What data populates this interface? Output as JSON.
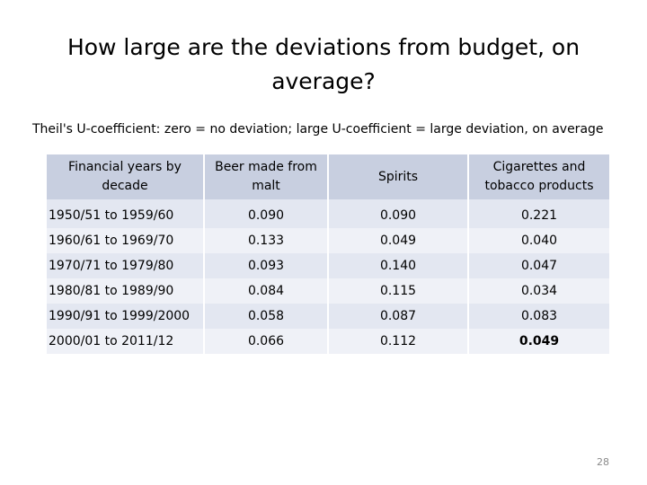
{
  "title": "How large are the deviations from budget, on average?",
  "subtitle": "Theil's U-coefficient:  zero = no deviation; large U-coefficient = large deviation, on average",
  "table": {
    "headers": [
      "Financial years by decade",
      "Beer made from malt",
      "Spirits",
      "Cigarettes and tobacco products"
    ],
    "rows": [
      [
        "1950/51 to 1959/60",
        "0.090",
        "0.090",
        "0.221"
      ],
      [
        "1960/61 to 1969/70",
        "0.133",
        "0.049",
        "0.040"
      ],
      [
        "1970/71 to 1979/80",
        "0.093",
        "0.140",
        "0.047"
      ],
      [
        "1980/81 to 1989/90",
        "0.084",
        "0.115",
        "0.034"
      ],
      [
        "1990/91 to 1999/2000",
        "0.058",
        "0.087",
        "0.083"
      ],
      [
        "2000/01 to 2011/12",
        "0.066",
        "0.112",
        "0.049"
      ]
    ]
  },
  "page_number": "28"
}
